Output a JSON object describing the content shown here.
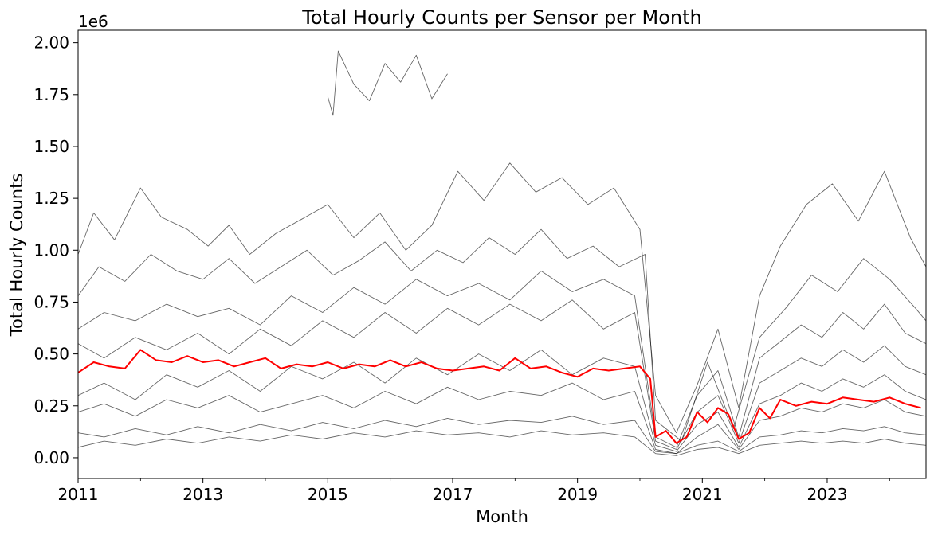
{
  "chart_data": {
    "type": "line",
    "title": "Total Hourly Counts per Sensor per Month",
    "xlabel": "Month",
    "ylabel": "Total Hourly Counts",
    "y_offset_label": "1e6",
    "xlim": [
      "2011-01",
      "2024-08"
    ],
    "ylim": [
      -0.1,
      2.06
    ],
    "x_ticks": [
      "2011",
      "2013",
      "2015",
      "2017",
      "2019",
      "2021",
      "2023"
    ],
    "y_ticks": [
      "0.00",
      "0.25",
      "0.50",
      "0.75",
      "1.00",
      "1.25",
      "1.50",
      "1.75",
      "2.00"
    ],
    "grid": false,
    "line_colors": {
      "sensors": "#000000",
      "average": "#ff0000"
    },
    "series": [
      {
        "color": "#ff0000",
        "x": [
          "2011-01",
          "2011-04",
          "2011-07",
          "2011-10",
          "2012-01",
          "2012-04",
          "2012-07",
          "2012-10",
          "2013-01",
          "2013-04",
          "2013-07",
          "2013-10",
          "2014-01",
          "2014-04",
          "2014-07",
          "2014-10",
          "2015-01",
          "2015-04",
          "2015-07",
          "2015-10",
          "2016-01",
          "2016-04",
          "2016-07",
          "2016-10",
          "2017-01",
          "2017-04",
          "2017-07",
          "2017-10",
          "2018-01",
          "2018-04",
          "2018-07",
          "2018-10",
          "2019-01",
          "2019-04",
          "2019-07",
          "2019-10",
          "2020-01",
          "2020-03",
          "2020-04",
          "2020-06",
          "2020-08",
          "2020-10",
          "2020-12",
          "2021-02",
          "2021-04",
          "2021-06",
          "2021-08",
          "2021-10",
          "2021-12",
          "2022-02",
          "2022-04",
          "2022-07",
          "2022-10",
          "2023-01",
          "2023-04",
          "2023-07",
          "2023-10",
          "2024-01",
          "2024-04",
          "2024-07"
        ],
        "values": [
          0.41,
          0.46,
          0.44,
          0.43,
          0.52,
          0.47,
          0.46,
          0.49,
          0.46,
          0.47,
          0.44,
          0.46,
          0.48,
          0.43,
          0.45,
          0.44,
          0.46,
          0.43,
          0.45,
          0.44,
          0.47,
          0.44,
          0.46,
          0.43,
          0.42,
          0.43,
          0.44,
          0.42,
          0.48,
          0.43,
          0.44,
          0.41,
          0.39,
          0.43,
          0.42,
          0.43,
          0.44,
          0.38,
          0.1,
          0.13,
          0.07,
          0.1,
          0.22,
          0.17,
          0.24,
          0.21,
          0.09,
          0.12,
          0.24,
          0.19,
          0.28,
          0.25,
          0.27,
          0.26,
          0.29,
          0.28,
          0.27,
          0.29,
          0.26,
          0.24
        ]
      },
      {
        "color": "#000000",
        "x": [
          "2015-01",
          "2015-02",
          "2015-03",
          "2015-06",
          "2015-09",
          "2015-12",
          "2016-03",
          "2016-06",
          "2016-09",
          "2016-12"
        ],
        "values": [
          1.74,
          1.65,
          1.96,
          1.8,
          1.72,
          1.9,
          1.81,
          1.94,
          1.73,
          1.85
        ]
      },
      {
        "color": "#000000",
        "x": [
          "2011-01",
          "2011-04",
          "2011-08",
          "2012-01",
          "2012-05",
          "2012-10",
          "2013-02",
          "2013-06",
          "2013-10",
          "2014-03",
          "2014-08",
          "2015-01",
          "2015-06",
          "2015-11",
          "2016-04",
          "2016-09",
          "2017-02",
          "2017-07",
          "2017-12",
          "2018-05",
          "2018-10",
          "2019-03",
          "2019-08",
          "2020-01",
          "2020-04",
          "2020-08",
          "2020-12",
          "2021-04",
          "2021-08",
          "2021-12",
          "2022-04",
          "2022-09",
          "2023-02",
          "2023-07",
          "2023-12",
          "2024-05",
          "2024-08"
        ],
        "values": [
          0.98,
          1.18,
          1.05,
          1.3,
          1.16,
          1.1,
          1.02,
          1.12,
          0.98,
          1.08,
          1.15,
          1.22,
          1.06,
          1.18,
          1.0,
          1.12,
          1.38,
          1.24,
          1.42,
          1.28,
          1.35,
          1.22,
          1.3,
          1.1,
          0.3,
          0.12,
          0.35,
          0.62,
          0.24,
          0.78,
          1.02,
          1.22,
          1.32,
          1.14,
          1.38,
          1.06,
          0.92
        ]
      },
      {
        "color": "#000000",
        "x": [
          "2011-01",
          "2011-05",
          "2011-10",
          "2012-03",
          "2012-08",
          "2013-01",
          "2013-06",
          "2013-11",
          "2014-04",
          "2014-09",
          "2015-02",
          "2015-07",
          "2015-12",
          "2016-05",
          "2016-10",
          "2017-03",
          "2017-08",
          "2018-01",
          "2018-06",
          "2018-11",
          "2019-04",
          "2019-09",
          "2020-02",
          "2020-04",
          "2020-09",
          "2021-02",
          "2021-07",
          "2021-12",
          "2022-05",
          "2022-10",
          "2023-03",
          "2023-08",
          "2024-01",
          "2024-06",
          "2024-08"
        ],
        "values": [
          0.78,
          0.92,
          0.85,
          0.98,
          0.9,
          0.86,
          0.96,
          0.84,
          0.92,
          1.0,
          0.88,
          0.95,
          1.04,
          0.9,
          1.0,
          0.94,
          1.06,
          0.98,
          1.1,
          0.96,
          1.02,
          0.92,
          0.98,
          0.18,
          0.08,
          0.46,
          0.14,
          0.58,
          0.72,
          0.88,
          0.8,
          0.96,
          0.86,
          0.72,
          0.66
        ]
      },
      {
        "color": "#000000",
        "x": [
          "2011-01",
          "2011-06",
          "2011-12",
          "2012-06",
          "2012-12",
          "2013-06",
          "2013-12",
          "2014-06",
          "2014-12",
          "2015-06",
          "2015-12",
          "2016-06",
          "2016-12",
          "2017-06",
          "2017-12",
          "2018-06",
          "2018-12",
          "2019-06",
          "2019-12",
          "2020-04",
          "2020-08",
          "2020-12",
          "2021-04",
          "2021-08",
          "2021-12",
          "2022-04",
          "2022-08",
          "2022-12",
          "2023-04",
          "2023-08",
          "2023-12",
          "2024-04",
          "2024-08"
        ],
        "values": [
          0.62,
          0.7,
          0.66,
          0.74,
          0.68,
          0.72,
          0.64,
          0.78,
          0.7,
          0.82,
          0.74,
          0.86,
          0.78,
          0.84,
          0.76,
          0.9,
          0.8,
          0.86,
          0.78,
          0.1,
          0.05,
          0.3,
          0.42,
          0.1,
          0.48,
          0.56,
          0.64,
          0.58,
          0.7,
          0.62,
          0.74,
          0.6,
          0.55
        ]
      },
      {
        "color": "#000000",
        "x": [
          "2011-01",
          "2011-06",
          "2011-12",
          "2012-06",
          "2012-12",
          "2013-06",
          "2013-12",
          "2014-06",
          "2014-12",
          "2015-06",
          "2015-12",
          "2016-06",
          "2016-12",
          "2017-06",
          "2017-12",
          "2018-06",
          "2018-12",
          "2019-06",
          "2019-12",
          "2020-04",
          "2020-08",
          "2020-12",
          "2021-04",
          "2021-08",
          "2021-12",
          "2022-04",
          "2022-08",
          "2022-12",
          "2023-04",
          "2023-08",
          "2023-12",
          "2024-04",
          "2024-08"
        ],
        "values": [
          0.55,
          0.48,
          0.58,
          0.52,
          0.6,
          0.5,
          0.62,
          0.54,
          0.66,
          0.58,
          0.7,
          0.6,
          0.72,
          0.64,
          0.74,
          0.66,
          0.76,
          0.62,
          0.7,
          0.08,
          0.04,
          0.22,
          0.3,
          0.07,
          0.36,
          0.42,
          0.48,
          0.44,
          0.52,
          0.46,
          0.54,
          0.44,
          0.4
        ]
      },
      {
        "color": "#000000",
        "x": [
          "2011-01",
          "2011-06",
          "2011-12",
          "2012-06",
          "2012-12",
          "2013-06",
          "2013-12",
          "2014-06",
          "2014-12",
          "2015-06",
          "2015-12",
          "2016-06",
          "2016-12",
          "2017-06",
          "2017-12",
          "2018-06",
          "2018-12",
          "2019-06",
          "2019-12",
          "2020-04",
          "2020-08",
          "2020-12",
          "2021-04",
          "2021-08",
          "2021-12",
          "2022-04",
          "2022-08",
          "2022-12",
          "2023-04",
          "2023-08",
          "2023-12",
          "2024-04",
          "2024-08"
        ],
        "values": [
          0.3,
          0.36,
          0.28,
          0.4,
          0.34,
          0.42,
          0.32,
          0.44,
          0.38,
          0.46,
          0.36,
          0.48,
          0.4,
          0.5,
          0.42,
          0.52,
          0.4,
          0.48,
          0.44,
          0.06,
          0.03,
          0.16,
          0.22,
          0.05,
          0.26,
          0.3,
          0.36,
          0.32,
          0.38,
          0.34,
          0.4,
          0.32,
          0.28
        ]
      },
      {
        "color": "#000000",
        "x": [
          "2011-01",
          "2011-06",
          "2011-12",
          "2012-06",
          "2012-12",
          "2013-06",
          "2013-12",
          "2014-06",
          "2014-12",
          "2015-06",
          "2015-12",
          "2016-06",
          "2016-12",
          "2017-06",
          "2017-12",
          "2018-06",
          "2018-12",
          "2019-06",
          "2019-12",
          "2020-04",
          "2020-08",
          "2020-12",
          "2021-04",
          "2021-08",
          "2021-12",
          "2022-04",
          "2022-08",
          "2022-12",
          "2023-04",
          "2023-08",
          "2023-12",
          "2024-04",
          "2024-08"
        ],
        "values": [
          0.22,
          0.26,
          0.2,
          0.28,
          0.24,
          0.3,
          0.22,
          0.26,
          0.3,
          0.24,
          0.32,
          0.26,
          0.34,
          0.28,
          0.32,
          0.3,
          0.36,
          0.28,
          0.32,
          0.04,
          0.02,
          0.1,
          0.16,
          0.04,
          0.18,
          0.2,
          0.24,
          0.22,
          0.26,
          0.24,
          0.28,
          0.22,
          0.2
        ]
      },
      {
        "color": "#000000",
        "x": [
          "2011-01",
          "2011-06",
          "2011-12",
          "2012-06",
          "2012-12",
          "2013-06",
          "2013-12",
          "2014-06",
          "2014-12",
          "2015-06",
          "2015-12",
          "2016-06",
          "2016-12",
          "2017-06",
          "2017-12",
          "2018-06",
          "2018-12",
          "2019-06",
          "2019-12",
          "2020-04",
          "2020-08",
          "2020-12",
          "2021-04",
          "2021-08",
          "2021-12",
          "2022-04",
          "2022-08",
          "2022-12",
          "2023-04",
          "2023-08",
          "2023-12",
          "2024-04",
          "2024-08"
        ],
        "values": [
          0.12,
          0.1,
          0.14,
          0.11,
          0.15,
          0.12,
          0.16,
          0.13,
          0.17,
          0.14,
          0.18,
          0.15,
          0.19,
          0.16,
          0.18,
          0.17,
          0.2,
          0.16,
          0.18,
          0.03,
          0.02,
          0.06,
          0.08,
          0.03,
          0.1,
          0.11,
          0.13,
          0.12,
          0.14,
          0.13,
          0.15,
          0.12,
          0.11
        ]
      },
      {
        "color": "#000000",
        "x": [
          "2011-01",
          "2011-06",
          "2011-12",
          "2012-06",
          "2012-12",
          "2013-06",
          "2013-12",
          "2014-06",
          "2014-12",
          "2015-06",
          "2015-12",
          "2016-06",
          "2016-12",
          "2017-06",
          "2017-12",
          "2018-06",
          "2018-12",
          "2019-06",
          "2019-12",
          "2020-04",
          "2020-08",
          "2020-12",
          "2021-04",
          "2021-08",
          "2021-12",
          "2022-04",
          "2022-08",
          "2022-12",
          "2023-04",
          "2023-08",
          "2023-12",
          "2024-04",
          "2024-08"
        ],
        "values": [
          0.05,
          0.08,
          0.06,
          0.09,
          0.07,
          0.1,
          0.08,
          0.11,
          0.09,
          0.12,
          0.1,
          0.13,
          0.11,
          0.12,
          0.1,
          0.13,
          0.11,
          0.12,
          0.1,
          0.02,
          0.01,
          0.04,
          0.05,
          0.02,
          0.06,
          0.07,
          0.08,
          0.07,
          0.08,
          0.07,
          0.09,
          0.07,
          0.06
        ]
      }
    ]
  }
}
